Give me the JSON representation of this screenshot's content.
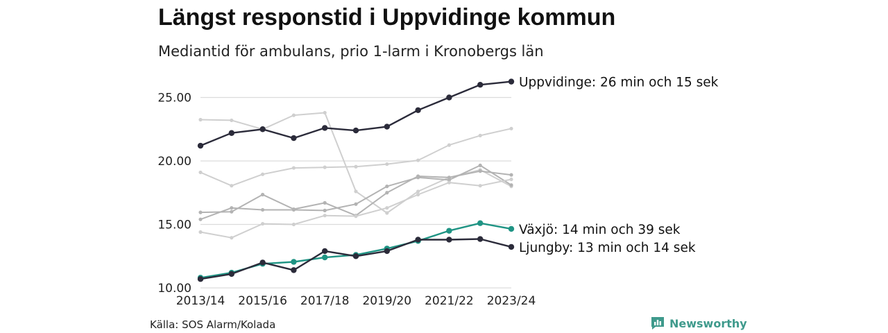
{
  "title": "Längst responstid i Uppvidinge kommun",
  "subtitle": "Mediantid för ambulans, prio 1-larm i Kronobergs län",
  "source": "Källa: SOS Alarm/Kolada",
  "brand": {
    "name": "Newsworthy",
    "icon": "newsworthy-logo-icon",
    "color": "#3f9a8c"
  },
  "chart_data": {
    "type": "line",
    "x": [
      "2013/14",
      "2014/15",
      "2015/16",
      "2016/17",
      "2017/18",
      "2018/19",
      "2019/20",
      "2020/21",
      "2021/22",
      "2022/23",
      "2023/24"
    ],
    "x_tick_labels": [
      "2013/14",
      "2015/16",
      "2017/18",
      "2019/20",
      "2021/22",
      "2023/24"
    ],
    "y_tick_labels": [
      "10.00",
      "15.00",
      "20.00",
      "25.00"
    ],
    "ylim": [
      10,
      26.5
    ],
    "grid": true,
    "highlighted_series": [
      {
        "label": "Uppvidinge: 26 min och 15 sek",
        "color": "#2b2b3a",
        "values": [
          21.2,
          22.2,
          22.5,
          21.8,
          22.6,
          22.4,
          22.7,
          24.0,
          25.0,
          26.0,
          26.25
        ]
      },
      {
        "label": "Växjö: 14 min och 39 sek",
        "color": "#1f9484",
        "values": [
          10.8,
          11.2,
          11.9,
          12.05,
          12.4,
          12.6,
          13.1,
          13.7,
          14.5,
          15.1,
          14.65
        ]
      },
      {
        "label": "Ljungby: 13 min och 14 sek",
        "color": "#2b2b3a",
        "values": [
          10.7,
          11.1,
          12.0,
          11.4,
          12.9,
          12.5,
          12.9,
          13.8,
          13.8,
          13.85,
          13.23
        ]
      }
    ],
    "background_series": [
      {
        "color": "#cfcfcf",
        "values": [
          23.25,
          23.2,
          22.5,
          23.6,
          23.8,
          17.6,
          15.9,
          17.6,
          18.7,
          19.3,
          18.0
        ]
      },
      {
        "color": "#cfcfcf",
        "values": [
          19.1,
          18.05,
          18.95,
          19.45,
          19.5,
          19.55,
          19.75,
          20.05,
          21.25,
          22.0,
          22.55
        ]
      },
      {
        "color": "#b3b3b3",
        "values": [
          15.95,
          16.0,
          17.35,
          16.2,
          16.7,
          15.7,
          17.5,
          18.8,
          18.7,
          19.2,
          18.9
        ]
      },
      {
        "color": "#b3b3b3",
        "values": [
          15.4,
          16.3,
          16.15,
          16.15,
          16.1,
          16.6,
          18.0,
          18.7,
          18.5,
          19.65,
          18.1
        ]
      },
      {
        "color": "#cfcfcf",
        "values": [
          14.4,
          13.95,
          15.05,
          15.0,
          15.7,
          15.65,
          16.3,
          17.35,
          18.3,
          18.05,
          18.55
        ]
      }
    ]
  }
}
